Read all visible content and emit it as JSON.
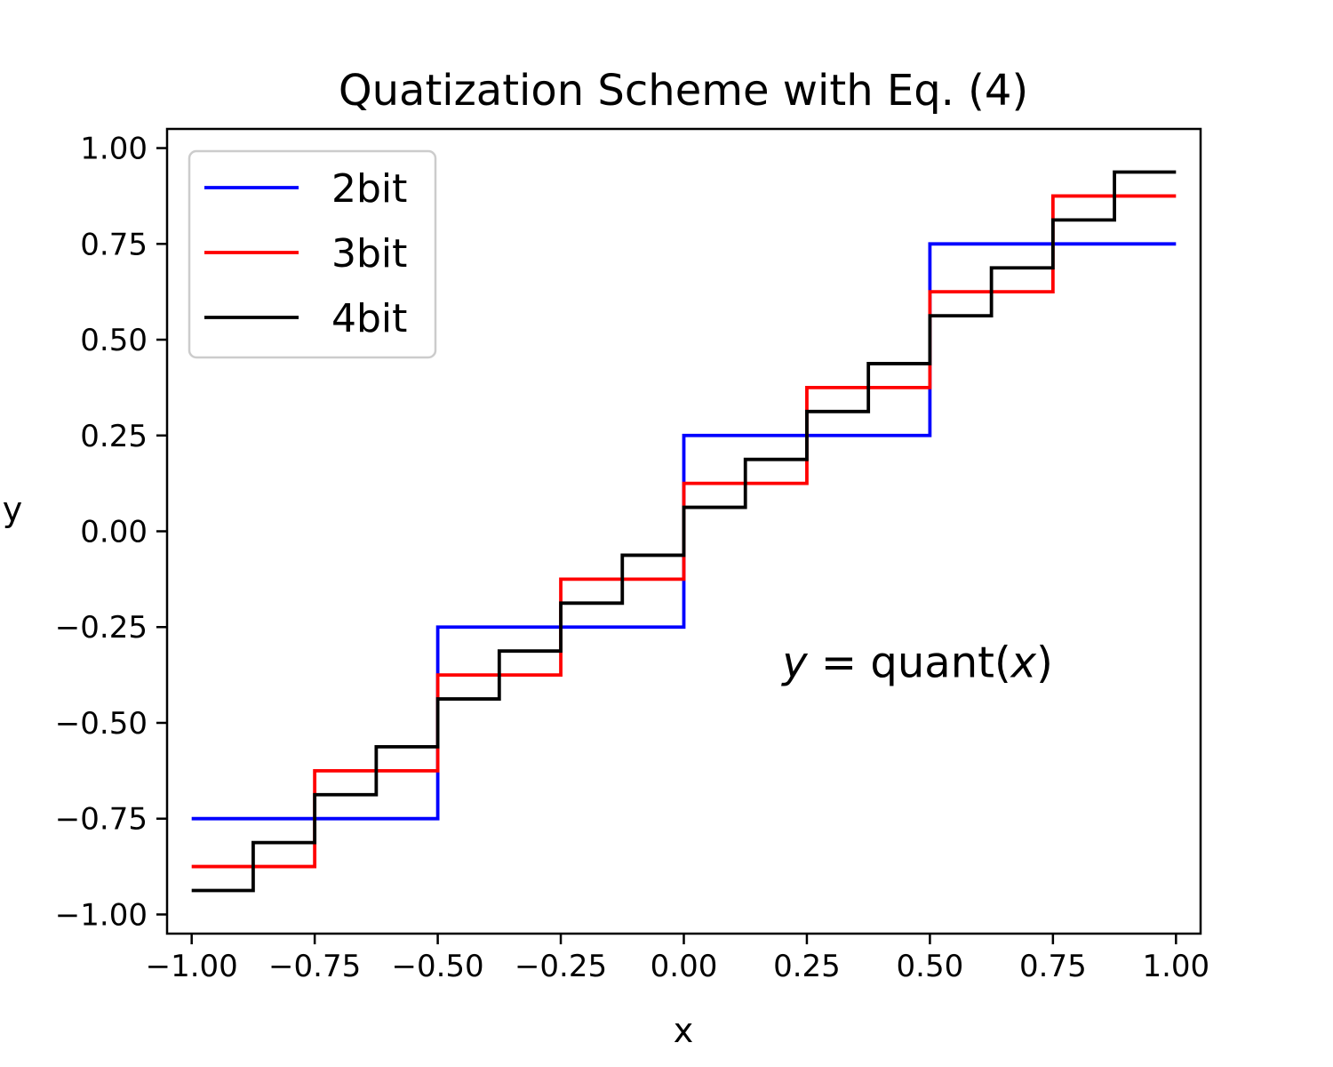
{
  "chart_data": {
    "type": "line",
    "step": "post",
    "title": "Quatization Scheme with Eq. (4)",
    "xlabel": "x",
    "ylabel": "y",
    "xlim": [
      -1.05,
      1.05
    ],
    "ylim": [
      -1.05,
      1.05
    ],
    "xticks": [
      -1.0,
      -0.75,
      -0.5,
      -0.25,
      0.0,
      0.25,
      0.5,
      0.75,
      1.0
    ],
    "yticks": [
      -1.0,
      -0.75,
      -0.5,
      -0.25,
      0.0,
      0.25,
      0.5,
      0.75,
      1.0
    ],
    "xtick_labels": [
      "−1.00",
      "−0.75",
      "−0.50",
      "−0.25",
      "0.00",
      "0.25",
      "0.50",
      "0.75",
      "1.00"
    ],
    "ytick_labels": [
      "−1.00",
      "−0.75",
      "−0.50",
      "−0.25",
      "0.00",
      "0.25",
      "0.50",
      "0.75",
      "1.00"
    ],
    "grid": false,
    "legend_position": "top-left",
    "annotation": {
      "y_symbol": "y",
      "equals": " = ",
      "func": "quant(",
      "x_symbol": "x",
      "close": ")",
      "x": 0.2,
      "y": -0.38
    },
    "series": [
      {
        "name": "2bit",
        "color": "#0000ff",
        "x": [
          -1.0,
          -0.5,
          0.0,
          0.5,
          1.0
        ],
        "y": [
          -0.75,
          -0.25,
          0.25,
          0.75,
          0.75
        ]
      },
      {
        "name": "3bit",
        "color": "#ff0000",
        "x": [
          -1.0,
          -0.75,
          -0.5,
          -0.25,
          0.0,
          0.25,
          0.5,
          0.75,
          1.0
        ],
        "y": [
          -0.875,
          -0.625,
          -0.375,
          -0.125,
          0.125,
          0.375,
          0.625,
          0.875,
          0.875
        ]
      },
      {
        "name": "4bit",
        "color": "#000000",
        "x": [
          -1.0,
          -0.875,
          -0.75,
          -0.625,
          -0.5,
          -0.375,
          -0.25,
          -0.125,
          0.0,
          0.125,
          0.25,
          0.375,
          0.5,
          0.625,
          0.75,
          0.875,
          1.0
        ],
        "y": [
          -0.9375,
          -0.8125,
          -0.6875,
          -0.5625,
          -0.4375,
          -0.3125,
          -0.1875,
          -0.0625,
          0.0625,
          0.1875,
          0.3125,
          0.4375,
          0.5625,
          0.6875,
          0.8125,
          0.9375,
          0.9375
        ]
      }
    ]
  }
}
